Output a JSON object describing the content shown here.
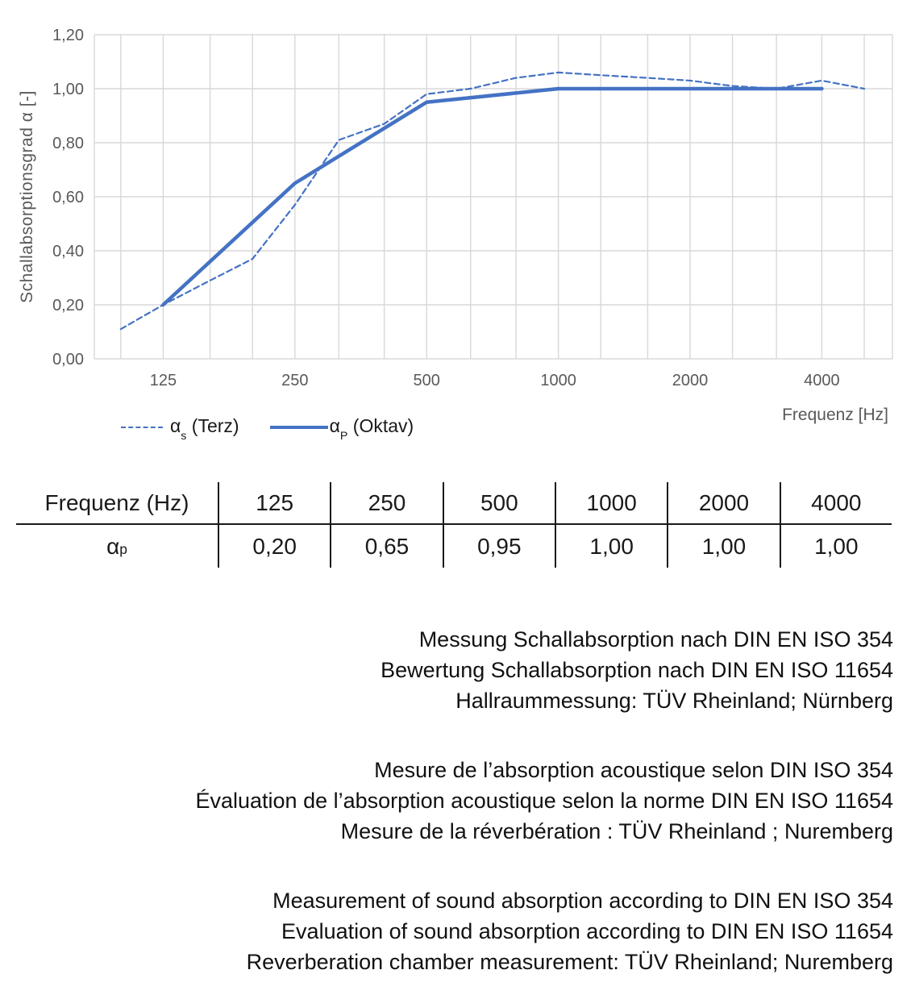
{
  "chart_data": {
    "type": "line",
    "title": "",
    "ylabel": "Schallabsorptionsgrad α [-]",
    "xlabel": "Frequenz [Hz]",
    "ylim": [
      0,
      1.2
    ],
    "xlim_log": [
      87,
      5800
    ],
    "grid": true,
    "legend_position": "bottom-left",
    "yticks": {
      "values": [
        0,
        0.2,
        0.4,
        0.6,
        0.8,
        1,
        1.2
      ],
      "labels": [
        "0,00",
        "0,20",
        "0,40",
        "0,60",
        "0,80",
        "1,00",
        "1,20"
      ]
    },
    "xticks": {
      "values": [
        125,
        250,
        500,
        1000,
        2000,
        4000
      ],
      "labels": [
        "125",
        "250",
        "500",
        "1000",
        "2000",
        "4000"
      ]
    },
    "x_gridlines": [
      100,
      125,
      160,
      200,
      250,
      315,
      400,
      500,
      630,
      800,
      1000,
      1250,
      1600,
      2000,
      2500,
      3150,
      4000,
      5000
    ],
    "colors": {
      "series": "#4472C4",
      "grid": "#D8D8D8",
      "axis_text": "#595959"
    },
    "series": [
      {
        "name": "αs (Terz)",
        "legend": {
          "alpha": "α",
          "sub": "s",
          "rest": " (Terz)"
        },
        "style": "dashed",
        "width": 2.2,
        "x": [
          100,
          125,
          160,
          200,
          250,
          315,
          400,
          500,
          630,
          800,
          1000,
          1250,
          1600,
          2000,
          2500,
          3150,
          4000,
          5000
        ],
        "values": [
          0.11,
          0.2,
          0.29,
          0.37,
          0.57,
          0.81,
          0.87,
          0.98,
          1.0,
          1.04,
          1.06,
          1.05,
          1.04,
          1.03,
          1.01,
          1.0,
          1.03,
          1.0
        ]
      },
      {
        "name": "αP (Oktav)",
        "legend": {
          "alpha": "α",
          "sub": "P",
          "rest": " (Oktav)"
        },
        "style": "solid",
        "width": 4.5,
        "x": [
          125,
          250,
          500,
          1000,
          2000,
          4000
        ],
        "values": [
          0.2,
          0.65,
          0.95,
          1.0,
          1.0,
          1.0
        ]
      }
    ]
  },
  "table": {
    "header": {
      "label": "Frequenz (Hz)",
      "cols": [
        "125",
        "250",
        "500",
        "1000",
        "2000",
        "4000"
      ]
    },
    "row": {
      "label_alpha": "α",
      "label_sub": "p",
      "values": [
        "0,20",
        "0,65",
        "0,95",
        "1,00",
        "1,00",
        "1,00"
      ]
    }
  },
  "paragraphs": {
    "de": [
      "Messung Schallabsorption nach DIN EN ISO 354",
      "Bewertung Schallabsorption nach DIN EN ISO 11654",
      "Hallraummessung: TÜV Rheinland; Nürnberg"
    ],
    "fr": [
      "Mesure de l’absorption acoustique selon DIN ISO 354",
      "Évaluation de l’absorption acoustique selon la norme DIN EN ISO 11654",
      "Mesure de la réverbération : TÜV Rheinland ; Nuremberg"
    ],
    "en": [
      "Measurement of sound absorption according to DIN EN ISO 354",
      "Evaluation of sound absorption according to DIN EN ISO 11654",
      "Reverberation chamber measurement: TÜV Rheinland; Nuremberg"
    ]
  }
}
